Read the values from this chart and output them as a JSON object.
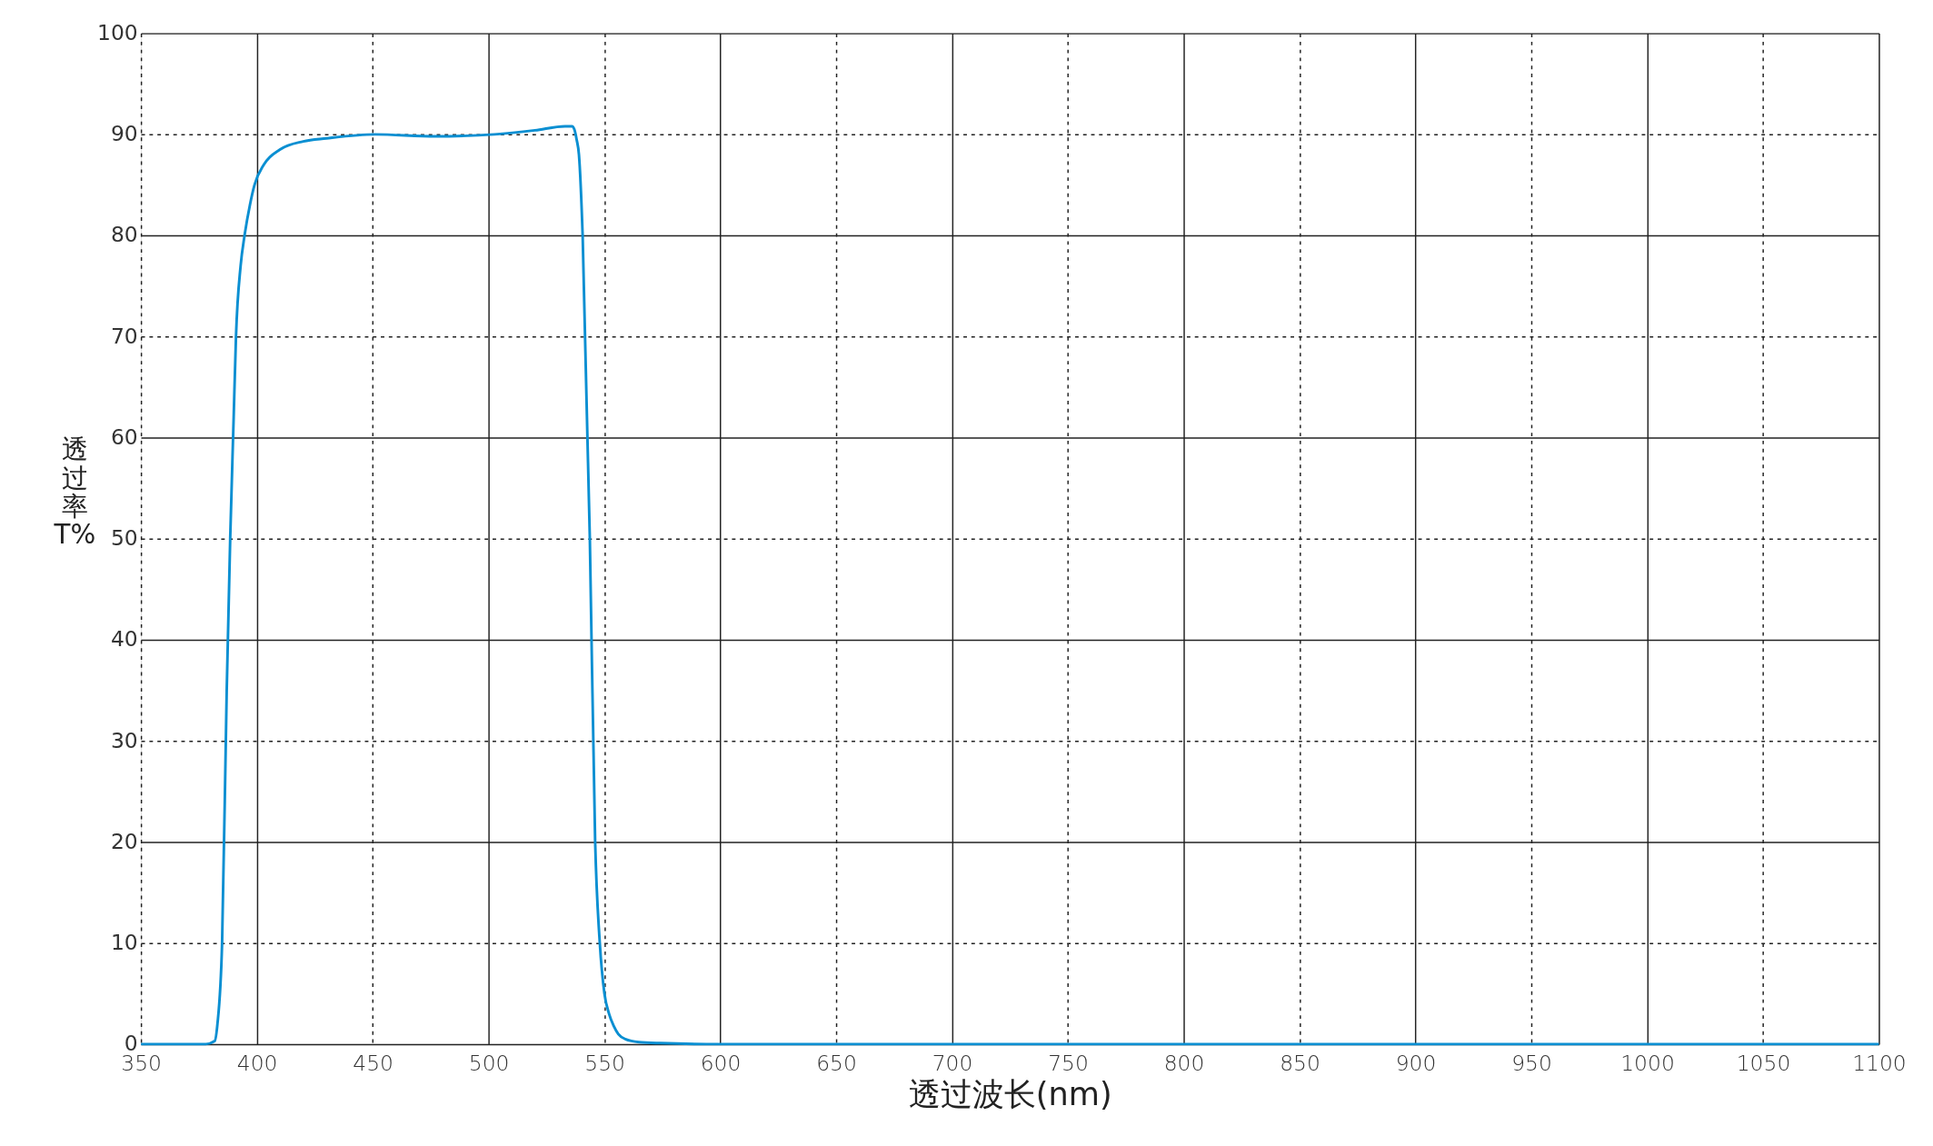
{
  "chart_data": {
    "type": "line",
    "xlabel": "透过波长(nm)",
    "ylabel": "透过率T%",
    "x": [
      350,
      378,
      381.8,
      383,
      385,
      387,
      388.5,
      390,
      391,
      393,
      394.7,
      397,
      399,
      403,
      410,
      420,
      430,
      451,
      477,
      502.5,
      520,
      533,
      536,
      537,
      538,
      539,
      540.6,
      543.7,
      546,
      548,
      550,
      552,
      554,
      556,
      559,
      565,
      574,
      600,
      700,
      800,
      900,
      1000,
      1100
    ],
    "series": [
      {
        "color": "#0a8fd2",
        "values": [
          0,
          0,
          0.3,
          2,
          10,
          35,
          50,
          62,
          70,
          77,
          80,
          83,
          85,
          87,
          88.5,
          89.3,
          89.6,
          90,
          89.8,
          90,
          90.4,
          90.8,
          90.8,
          90.5,
          89.5,
          88,
          80,
          50,
          20,
          10,
          5,
          3,
          1.8,
          1,
          0.5,
          0.2,
          0.1,
          0,
          0,
          0,
          0,
          0,
          0
        ]
      }
    ],
    "xlim": [
      350,
      1100
    ],
    "xticks": [
      350,
      400,
      450,
      500,
      550,
      600,
      650,
      700,
      750,
      800,
      850,
      900,
      950,
      1000,
      1050,
      1100
    ],
    "ylim": [
      0,
      100
    ],
    "yticks": [
      0,
      10,
      20,
      30,
      40,
      50,
      60,
      70,
      80,
      90,
      100
    ],
    "grid": true,
    "marker": "none",
    "line_style": "solid"
  }
}
